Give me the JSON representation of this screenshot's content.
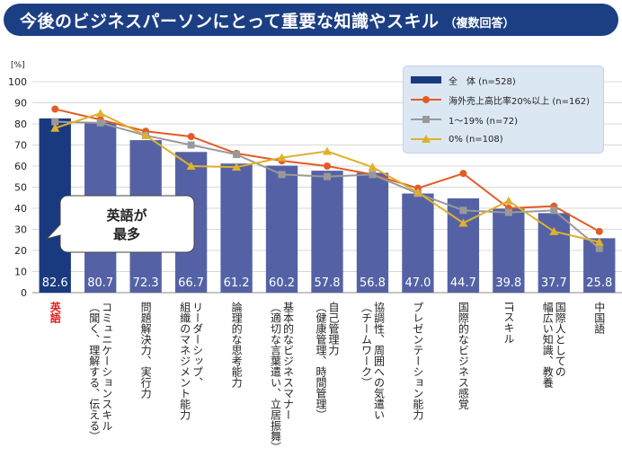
{
  "title": "今後のビジネスパーソンにとって重要な知識やスキル",
  "subtitle": "（複数回答）",
  "callout": {
    "line1": "英語が",
    "line2": "最多"
  },
  "colors": {
    "title_bg": "#1c3f84",
    "bar_primary": "#1a3a7f",
    "bar": "#5462a5",
    "line_overseas": "#e25b26",
    "line_1_19": "#999999",
    "line_0": "#dfb02e",
    "highlight_label": "#e02020"
  },
  "chart_data": {
    "type": "bar",
    "ylabel": "[%]",
    "ylim": [
      0,
      100
    ],
    "yticks": [
      0,
      10,
      20,
      30,
      40,
      50,
      60,
      70,
      80,
      90,
      100
    ],
    "grid": true,
    "legend_position": "top-right",
    "categories": [
      [
        "英語"
      ],
      [
        "コミュニケーションスキル",
        "（聞く、理解する、伝える）"
      ],
      [
        "問題解決力、実行力"
      ],
      [
        "リーダーシップ、",
        "組織のマネジメント能力"
      ],
      [
        "論理的な思考能力"
      ],
      [
        "基本的なビジネスマナー",
        "（適切な言葉遣い、立居振舞）"
      ],
      [
        "自己管理力",
        "（健康管理、時間管理）"
      ],
      [
        "協調性、周囲への気遣い",
        "（チームワーク）"
      ],
      [
        "プレゼンテーション能力"
      ],
      [
        "国際的なビジネス感覚"
      ],
      [
        "ITスキル"
      ],
      [
        "国際人としての",
        "幅広い知識、教養"
      ],
      [
        "中国語"
      ]
    ],
    "bar_labels": [
      "82.6",
      "80.7",
      "72.3",
      "66.7",
      "61.2",
      "60.2",
      "57.8",
      "56.8",
      "47.0",
      "44.7",
      "39.8",
      "37.7",
      "25.8"
    ],
    "series": [
      {
        "name": "全　体 (n=528)",
        "kind": "bar",
        "values": [
          82.6,
          80.7,
          72.3,
          66.7,
          61.2,
          60.2,
          57.8,
          56.8,
          47.0,
          44.7,
          39.8,
          37.7,
          25.8
        ]
      },
      {
        "name": "海外売上高比率20%以上 (n=162)",
        "kind": "line",
        "marker": "circle",
        "values": [
          87,
          82,
          76.5,
          74,
          66,
          62.5,
          60,
          56,
          49.5,
          56.5,
          40,
          41,
          29
        ]
      },
      {
        "name": "1～19% (n=72)",
        "kind": "line",
        "marker": "square",
        "values": [
          81,
          80.5,
          74.5,
          70,
          65.5,
          56,
          55,
          56,
          47,
          39,
          38,
          39,
          21
        ]
      },
      {
        "name": "0% (n=108)",
        "kind": "line",
        "marker": "triangle",
        "values": [
          78,
          85,
          74.5,
          60,
          59.5,
          64,
          67,
          59.5,
          47.5,
          33,
          43.5,
          29,
          24
        ]
      }
    ]
  }
}
